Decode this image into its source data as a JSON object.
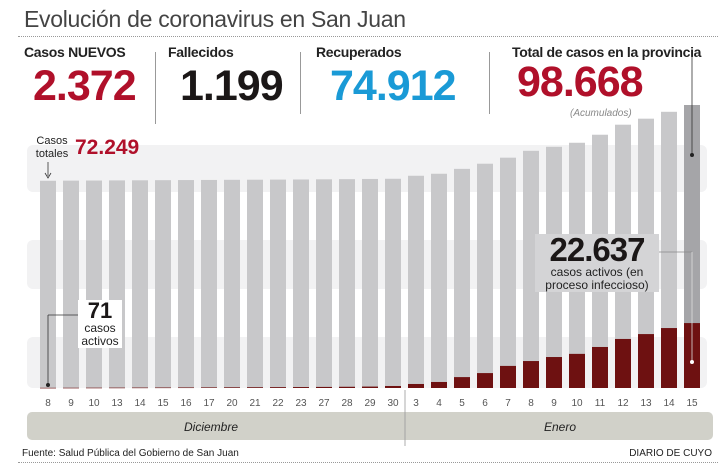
{
  "header": {
    "title": "Evolución de coronavirus en San Juan"
  },
  "stats": [
    {
      "label": "Casos NUEVOS",
      "value": "2.372",
      "color": "#b0102a"
    },
    {
      "label": "Fallecidos",
      "value": "1.199",
      "color": "#1b1717"
    },
    {
      "label": "Recuperados",
      "value": "74.912",
      "color": "#1a9ad6"
    },
    {
      "label": "Total de casos en la provincia",
      "value": "98.668",
      "color": "#b0102a",
      "note": "(Acumulados)"
    }
  ],
  "annotations": {
    "totales_label": "Casos totales",
    "totales_value": "72.249",
    "activos_start_value": "71",
    "activos_start_label": "casos activos",
    "activos_end_value": "22.637",
    "activos_end_label": "casos activos (en proceso infeccioso)"
  },
  "chart_data": {
    "type": "bar",
    "stacked_overlay": true,
    "categories": [
      "8",
      "9",
      "10",
      "13",
      "14",
      "15",
      "16",
      "17",
      "20",
      "21",
      "22",
      "23",
      "27",
      "28",
      "29",
      "30",
      "3",
      "4",
      "5",
      "6",
      "7",
      "8",
      "9",
      "10",
      "11",
      "12",
      "13",
      "14",
      "15"
    ],
    "months": [
      {
        "label": "Diciembre"
      },
      {
        "label": "Enero"
      }
    ],
    "series": [
      {
        "name": "Casos totales",
        "color": "#c8c8ca",
        "values": [
          72249,
          72300,
          72340,
          72380,
          72420,
          72460,
          72500,
          72540,
          72580,
          72620,
          72660,
          72700,
          72760,
          72820,
          72880,
          72950,
          74000,
          74700,
          76400,
          78200,
          80300,
          82700,
          84100,
          85500,
          88300,
          91800,
          93900,
          96300,
          98668
        ]
      },
      {
        "name": "casos activos",
        "color": "#6e1111",
        "values": [
          71,
          90,
          110,
          130,
          150,
          170,
          190,
          210,
          240,
          270,
          300,
          330,
          380,
          430,
          500,
          700,
          1400,
          2100,
          3800,
          5200,
          7700,
          9400,
          10800,
          11900,
          14300,
          17100,
          18800,
          20900,
          22637
        ]
      }
    ],
    "highlight_last_color": "#a5a5a8",
    "ylim": [
      0,
      98668
    ]
  },
  "footer": {
    "source": "Fuente: Salud Pública del Gobierno de San Juan",
    "brand": "DIARIO DE CUYO"
  }
}
